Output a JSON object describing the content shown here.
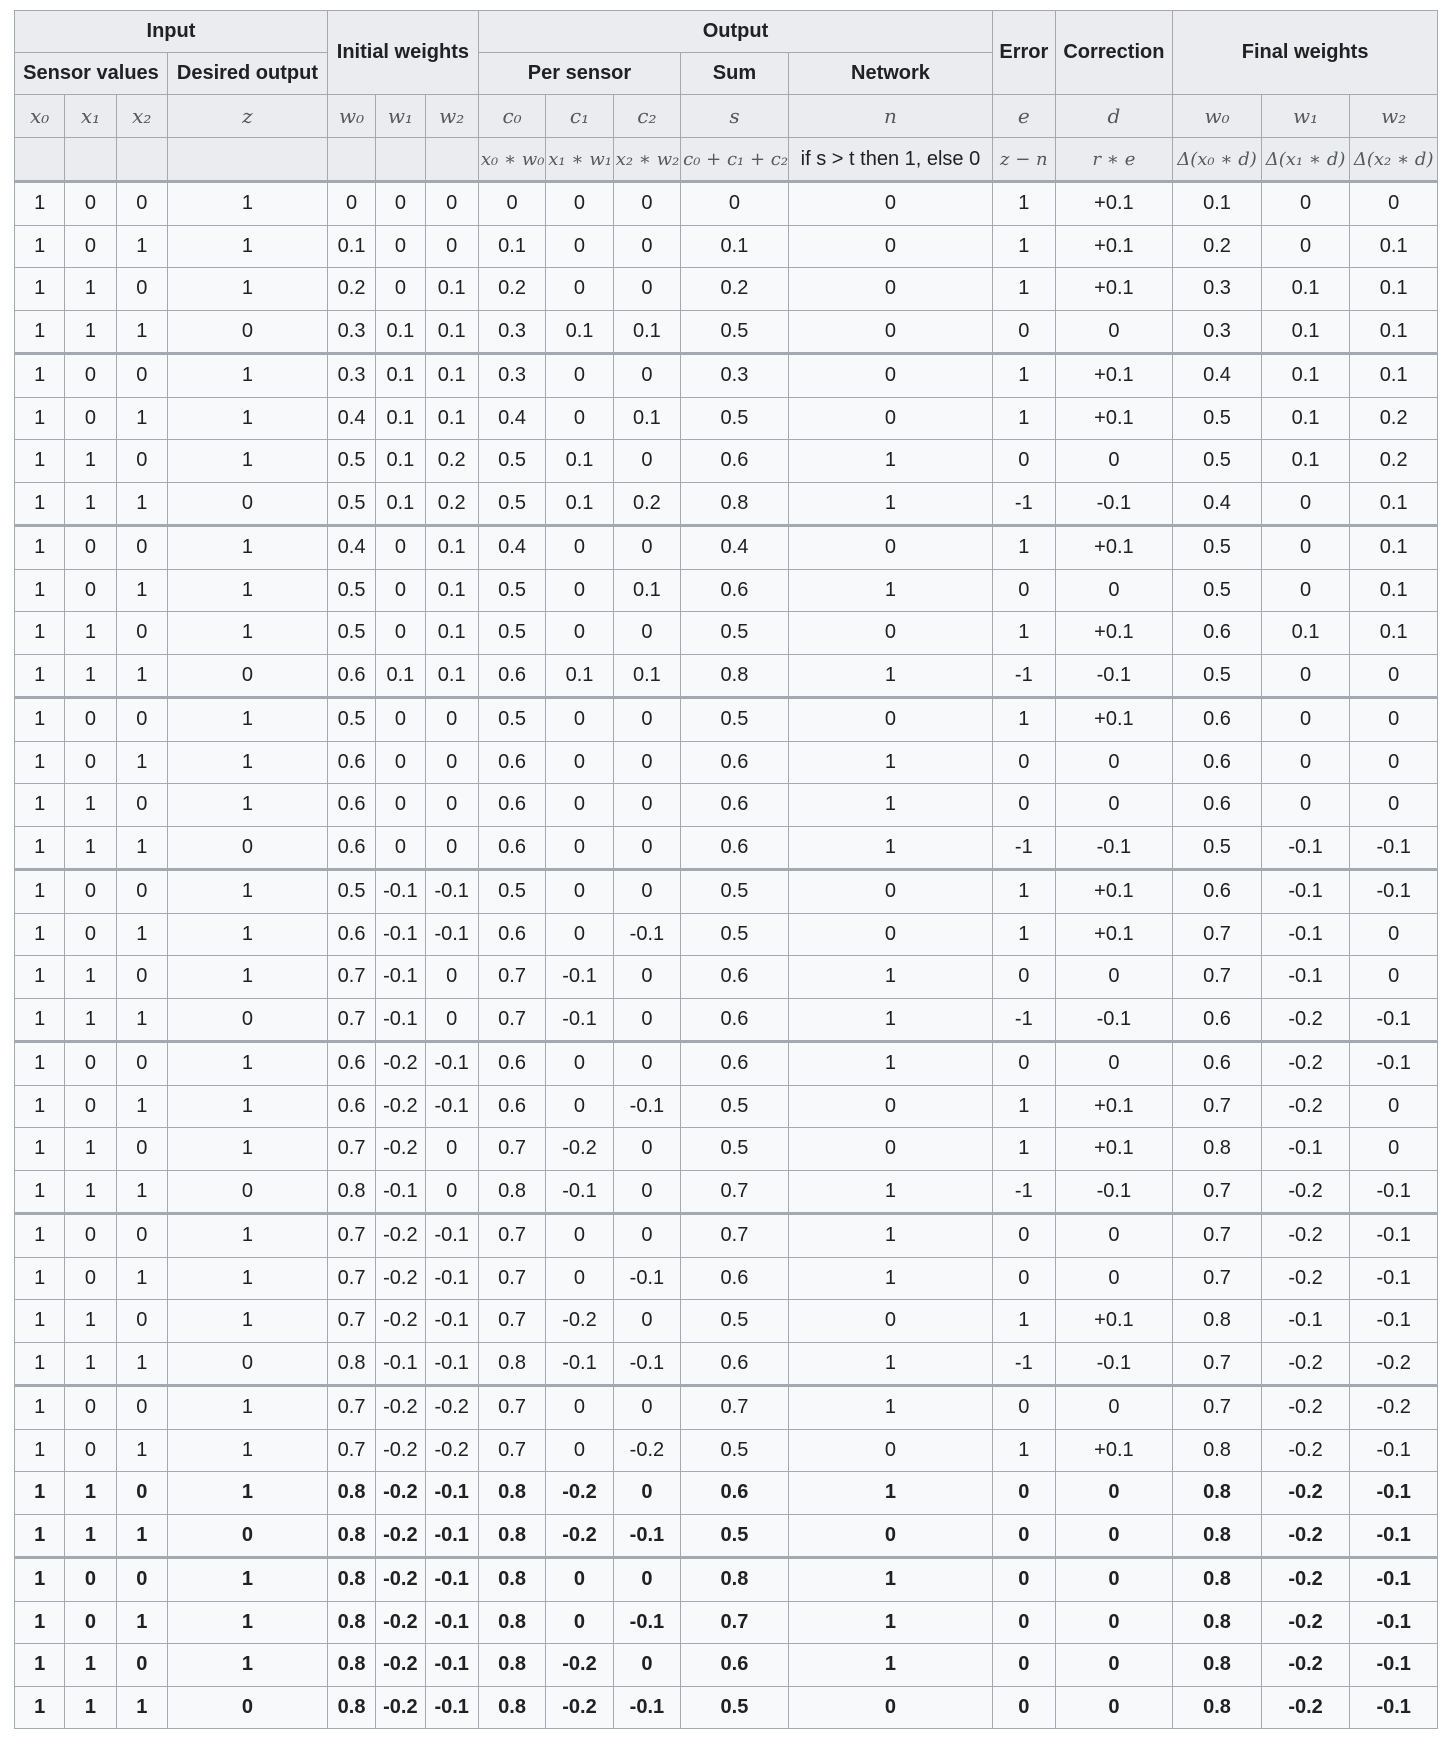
{
  "header": {
    "input": "Input",
    "initial_weights": "Initial weights",
    "output": "Output",
    "error": "Error",
    "correction": "Correction",
    "final_weights": "Final weights",
    "sensor_values": "Sensor values",
    "desired_output": "Desired output",
    "per_sensor": "Per sensor",
    "sum": "Sum",
    "network": "Network",
    "symbols": [
      "x₀",
      "x₁",
      "x₂",
      "z",
      "w₀",
      "w₁",
      "w₂",
      "c₀",
      "c₁",
      "c₂",
      "s",
      "n",
      "e",
      "d",
      "w₀",
      "w₁",
      "w₂"
    ],
    "formulas": [
      "",
      "",
      "",
      "",
      "",
      "",
      "",
      "x₀ ∗ w₀",
      "x₁ ∗ w₁",
      "x₂ ∗ w₂",
      "c₀ + c₁ + c₂",
      "if s > t then 1, else 0",
      "z − n",
      "r ∗ e",
      "Δ(x₀ ∗ d)",
      "Δ(x₁ ∗ d)",
      "Δ(x₂ ∗ d)"
    ]
  },
  "rows": [
    [
      "1",
      "0",
      "0",
      "1",
      "0",
      "0",
      "0",
      "0",
      "0",
      "0",
      "0",
      "0",
      "1",
      "+0.1",
      "0.1",
      "0",
      "0"
    ],
    [
      "1",
      "0",
      "1",
      "1",
      "0.1",
      "0",
      "0",
      "0.1",
      "0",
      "0",
      "0.1",
      "0",
      "1",
      "+0.1",
      "0.2",
      "0",
      "0.1"
    ],
    [
      "1",
      "1",
      "0",
      "1",
      "0.2",
      "0",
      "0.1",
      "0.2",
      "0",
      "0",
      "0.2",
      "0",
      "1",
      "+0.1",
      "0.3",
      "0.1",
      "0.1"
    ],
    [
      "1",
      "1",
      "1",
      "0",
      "0.3",
      "0.1",
      "0.1",
      "0.3",
      "0.1",
      "0.1",
      "0.5",
      "0",
      "0",
      "0",
      "0.3",
      "0.1",
      "0.1"
    ],
    [
      "1",
      "0",
      "0",
      "1",
      "0.3",
      "0.1",
      "0.1",
      "0.3",
      "0",
      "0",
      "0.3",
      "0",
      "1",
      "+0.1",
      "0.4",
      "0.1",
      "0.1"
    ],
    [
      "1",
      "0",
      "1",
      "1",
      "0.4",
      "0.1",
      "0.1",
      "0.4",
      "0",
      "0.1",
      "0.5",
      "0",
      "1",
      "+0.1",
      "0.5",
      "0.1",
      "0.2"
    ],
    [
      "1",
      "1",
      "0",
      "1",
      "0.5",
      "0.1",
      "0.2",
      "0.5",
      "0.1",
      "0",
      "0.6",
      "1",
      "0",
      "0",
      "0.5",
      "0.1",
      "0.2"
    ],
    [
      "1",
      "1",
      "1",
      "0",
      "0.5",
      "0.1",
      "0.2",
      "0.5",
      "0.1",
      "0.2",
      "0.8",
      "1",
      "-1",
      "-0.1",
      "0.4",
      "0",
      "0.1"
    ],
    [
      "1",
      "0",
      "0",
      "1",
      "0.4",
      "0",
      "0.1",
      "0.4",
      "0",
      "0",
      "0.4",
      "0",
      "1",
      "+0.1",
      "0.5",
      "0",
      "0.1"
    ],
    [
      "1",
      "0",
      "1",
      "1",
      "0.5",
      "0",
      "0.1",
      "0.5",
      "0",
      "0.1",
      "0.6",
      "1",
      "0",
      "0",
      "0.5",
      "0",
      "0.1"
    ],
    [
      "1",
      "1",
      "0",
      "1",
      "0.5",
      "0",
      "0.1",
      "0.5",
      "0",
      "0",
      "0.5",
      "0",
      "1",
      "+0.1",
      "0.6",
      "0.1",
      "0.1"
    ],
    [
      "1",
      "1",
      "1",
      "0",
      "0.6",
      "0.1",
      "0.1",
      "0.6",
      "0.1",
      "0.1",
      "0.8",
      "1",
      "-1",
      "-0.1",
      "0.5",
      "0",
      "0"
    ],
    [
      "1",
      "0",
      "0",
      "1",
      "0.5",
      "0",
      "0",
      "0.5",
      "0",
      "0",
      "0.5",
      "0",
      "1",
      "+0.1",
      "0.6",
      "0",
      "0"
    ],
    [
      "1",
      "0",
      "1",
      "1",
      "0.6",
      "0",
      "0",
      "0.6",
      "0",
      "0",
      "0.6",
      "1",
      "0",
      "0",
      "0.6",
      "0",
      "0"
    ],
    [
      "1",
      "1",
      "0",
      "1",
      "0.6",
      "0",
      "0",
      "0.6",
      "0",
      "0",
      "0.6",
      "1",
      "0",
      "0",
      "0.6",
      "0",
      "0"
    ],
    [
      "1",
      "1",
      "1",
      "0",
      "0.6",
      "0",
      "0",
      "0.6",
      "0",
      "0",
      "0.6",
      "1",
      "-1",
      "-0.1",
      "0.5",
      "-0.1",
      "-0.1"
    ],
    [
      "1",
      "0",
      "0",
      "1",
      "0.5",
      "-0.1",
      "-0.1",
      "0.5",
      "0",
      "0",
      "0.5",
      "0",
      "1",
      "+0.1",
      "0.6",
      "-0.1",
      "-0.1"
    ],
    [
      "1",
      "0",
      "1",
      "1",
      "0.6",
      "-0.1",
      "-0.1",
      "0.6",
      "0",
      "-0.1",
      "0.5",
      "0",
      "1",
      "+0.1",
      "0.7",
      "-0.1",
      "0"
    ],
    [
      "1",
      "1",
      "0",
      "1",
      "0.7",
      "-0.1",
      "0",
      "0.7",
      "-0.1",
      "0",
      "0.6",
      "1",
      "0",
      "0",
      "0.7",
      "-0.1",
      "0"
    ],
    [
      "1",
      "1",
      "1",
      "0",
      "0.7",
      "-0.1",
      "0",
      "0.7",
      "-0.1",
      "0",
      "0.6",
      "1",
      "-1",
      "-0.1",
      "0.6",
      "-0.2",
      "-0.1"
    ],
    [
      "1",
      "0",
      "0",
      "1",
      "0.6",
      "-0.2",
      "-0.1",
      "0.6",
      "0",
      "0",
      "0.6",
      "1",
      "0",
      "0",
      "0.6",
      "-0.2",
      "-0.1"
    ],
    [
      "1",
      "0",
      "1",
      "1",
      "0.6",
      "-0.2",
      "-0.1",
      "0.6",
      "0",
      "-0.1",
      "0.5",
      "0",
      "1",
      "+0.1",
      "0.7",
      "-0.2",
      "0"
    ],
    [
      "1",
      "1",
      "0",
      "1",
      "0.7",
      "-0.2",
      "0",
      "0.7",
      "-0.2",
      "0",
      "0.5",
      "0",
      "1",
      "+0.1",
      "0.8",
      "-0.1",
      "0"
    ],
    [
      "1",
      "1",
      "1",
      "0",
      "0.8",
      "-0.1",
      "0",
      "0.8",
      "-0.1",
      "0",
      "0.7",
      "1",
      "-1",
      "-0.1",
      "0.7",
      "-0.2",
      "-0.1"
    ],
    [
      "1",
      "0",
      "0",
      "1",
      "0.7",
      "-0.2",
      "-0.1",
      "0.7",
      "0",
      "0",
      "0.7",
      "1",
      "0",
      "0",
      "0.7",
      "-0.2",
      "-0.1"
    ],
    [
      "1",
      "0",
      "1",
      "1",
      "0.7",
      "-0.2",
      "-0.1",
      "0.7",
      "0",
      "-0.1",
      "0.6",
      "1",
      "0",
      "0",
      "0.7",
      "-0.2",
      "-0.1"
    ],
    [
      "1",
      "1",
      "0",
      "1",
      "0.7",
      "-0.2",
      "-0.1",
      "0.7",
      "-0.2",
      "0",
      "0.5",
      "0",
      "1",
      "+0.1",
      "0.8",
      "-0.1",
      "-0.1"
    ],
    [
      "1",
      "1",
      "1",
      "0",
      "0.8",
      "-0.1",
      "-0.1",
      "0.8",
      "-0.1",
      "-0.1",
      "0.6",
      "1",
      "-1",
      "-0.1",
      "0.7",
      "-0.2",
      "-0.2"
    ],
    [
      "1",
      "0",
      "0",
      "1",
      "0.7",
      "-0.2",
      "-0.2",
      "0.7",
      "0",
      "0",
      "0.7",
      "1",
      "0",
      "0",
      "0.7",
      "-0.2",
      "-0.2"
    ],
    [
      "1",
      "0",
      "1",
      "1",
      "0.7",
      "-0.2",
      "-0.2",
      "0.7",
      "0",
      "-0.2",
      "0.5",
      "0",
      "1",
      "+0.1",
      "0.8",
      "-0.2",
      "-0.1"
    ],
    [
      "1",
      "1",
      "0",
      "1",
      "0.8",
      "-0.2",
      "-0.1",
      "0.8",
      "-0.2",
      "0",
      "0.6",
      "1",
      "0",
      "0",
      "0.8",
      "-0.2",
      "-0.1"
    ],
    [
      "1",
      "1",
      "1",
      "0",
      "0.8",
      "-0.2",
      "-0.1",
      "0.8",
      "-0.2",
      "-0.1",
      "0.5",
      "0",
      "0",
      "0",
      "0.8",
      "-0.2",
      "-0.1"
    ],
    [
      "1",
      "0",
      "0",
      "1",
      "0.8",
      "-0.2",
      "-0.1",
      "0.8",
      "0",
      "0",
      "0.8",
      "1",
      "0",
      "0",
      "0.8",
      "-0.2",
      "-0.1"
    ],
    [
      "1",
      "0",
      "1",
      "1",
      "0.8",
      "-0.2",
      "-0.1",
      "0.8",
      "0",
      "-0.1",
      "0.7",
      "1",
      "0",
      "0",
      "0.8",
      "-0.2",
      "-0.1"
    ],
    [
      "1",
      "1",
      "0",
      "1",
      "0.8",
      "-0.2",
      "-0.1",
      "0.8",
      "-0.2",
      "0",
      "0.6",
      "1",
      "0",
      "0",
      "0.8",
      "-0.2",
      "-0.1"
    ],
    [
      "1",
      "1",
      "1",
      "0",
      "0.8",
      "-0.2",
      "-0.1",
      "0.8",
      "-0.2",
      "-0.1",
      "0.5",
      "0",
      "0",
      "0",
      "0.8",
      "-0.2",
      "-0.1"
    ]
  ]
}
